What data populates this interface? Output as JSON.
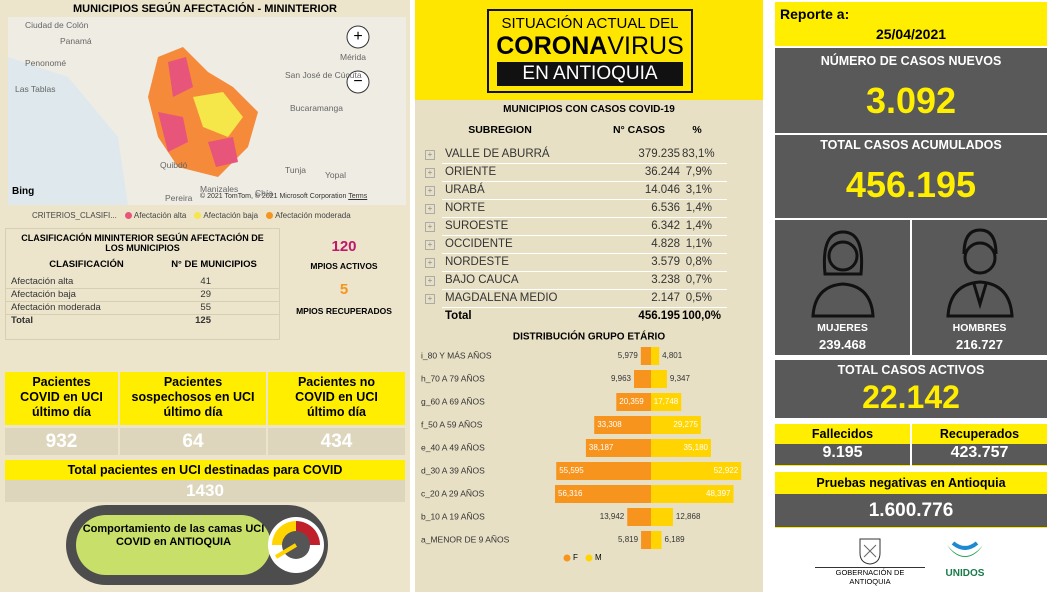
{
  "left": {
    "map_title": "MUNICIPIOS SEGÚN AFECTACIÓN - MININTERIOR",
    "map_labels": [
      "Ciudad de Colón",
      "Panamá",
      "Penonomé",
      "Las Tablas",
      "Mérida",
      "San José de Cúcuta",
      "Bucaramanga",
      "Tunja",
      "Yopal",
      "Quibdó",
      "Manizales",
      "Pereira",
      "Chía"
    ],
    "map_credit": "© 2021 TomTom, © 2021 Microsoft Corporation",
    "map_terms": "Terms",
    "bing": "Bing",
    "legend": {
      "title": "CRITERIOS_CLASIFI...",
      "items": [
        "Afectación alta",
        "Afectación baja",
        "Afectación moderada"
      ]
    },
    "table": {
      "title": "CLASIFICACIÓN MININTERIOR SEGÚN AFECTACIÓN DE LOS MUNICIPIOS",
      "headers": [
        "CLASIFICACIÓN",
        "N° DE MUNICIPIOS"
      ],
      "rows": [
        [
          "Afectación alta",
          "41"
        ],
        [
          "Afectación baja",
          "29"
        ],
        [
          "Afectación moderada",
          "55"
        ],
        [
          "Total",
          "125"
        ]
      ]
    },
    "active": "120",
    "active_label": "MPIOS ACTIVOS",
    "recovered": "5",
    "recovered_label": "MPIOS RECUPERADOS",
    "uci": [
      {
        "label": "Pacientes COVID en UCI último día",
        "value": "932"
      },
      {
        "label": "Pacientes sospechosos en UCI último día",
        "value": "64"
      },
      {
        "label": "Pacientes no COVID en UCI último día",
        "value": "434"
      }
    ],
    "uci_total_label": "Total pacientes en UCI destinadas para COVID",
    "uci_total": "1430",
    "button": "Comportamiento de las camas UCI COVID en ANTIOQUIA"
  },
  "middle": {
    "banner": {
      "line1": "SITUACIÓN ACTUAL DEL",
      "corona": "CORONA",
      "virus": "VIRUS",
      "line3": "EN ANTIOQUIA"
    },
    "table": {
      "title": "MUNICIPIOS CON CASOS COVID-19",
      "headers": [
        "SUBREGION",
        "N° CASOS",
        "%"
      ],
      "rows": [
        [
          "VALLE DE ABURRÁ",
          "379.235",
          "83,1%"
        ],
        [
          "ORIENTE",
          "36.244",
          "7,9%"
        ],
        [
          "URABÁ",
          "14.046",
          "3,1%"
        ],
        [
          "NORTE",
          "6.536",
          "1,4%"
        ],
        [
          "SUROESTE",
          "6.342",
          "1,4%"
        ],
        [
          "OCCIDENTE",
          "4.828",
          "1,1%"
        ],
        [
          "NORDESTE",
          "3.579",
          "0,8%"
        ],
        [
          "BAJO CAUCA",
          "3.238",
          "0,7%"
        ],
        [
          "MAGDALENA MEDIO",
          "2.147",
          "0,5%"
        ]
      ],
      "total": [
        "Total",
        "456.195",
        "100,0%"
      ]
    }
  },
  "chart_data": {
    "type": "pyramid",
    "title": "DISTRIBUCIÓN GRUPO ETÁRIO",
    "categories": [
      "i_80 Y MÁS AÑOS",
      "h_70 A 79 AÑOS",
      "g_60 A 69 AÑOS",
      "f_50 A 59 AÑOS",
      "e_40 A 49 AÑOS",
      "d_30 A 39 AÑOS",
      "c_20 A 29 AÑOS",
      "b_10 A 19 AÑOS",
      "a_MENOR DE 9 AÑOS"
    ],
    "series": [
      {
        "name": "F",
        "color": "#f7941d",
        "values": [
          5979,
          9963,
          20359,
          33308,
          38187,
          55595,
          56316,
          13942,
          5819
        ],
        "value_labels": [
          "5,979",
          "9,963",
          "20,359",
          "33,308",
          "38,187",
          "55,595",
          "56,316",
          "13,942",
          "5,819"
        ]
      },
      {
        "name": "M",
        "color": "#ffd400",
        "values": [
          4801,
          9347,
          17748,
          29275,
          35180,
          52922,
          48397,
          12868,
          6189
        ],
        "value_labels": [
          "4,801",
          "9,347",
          "17,748",
          "29,275",
          "35,180",
          "52,922",
          "48,397",
          "12,868",
          "6,189"
        ]
      }
    ]
  },
  "right": {
    "report_label": "Reporte a:",
    "report_date": "25/04/2021",
    "new_label": "NÚMERO DE CASOS NUEVOS",
    "new": "3.092",
    "cum_label": "TOTAL CASOS ACUMULADOS",
    "cum": "456.195",
    "women_label": "MUJERES",
    "women": "239.468",
    "men_label": "HOMBRES",
    "men": "216.727",
    "active_label": "TOTAL CASOS ACTIVOS",
    "active": "22.142",
    "deaths_label": "Fallecidos",
    "deaths": "9.195",
    "recovered_label": "Recuperados",
    "recovered": "423.757",
    "tests_label": "Pruebas negativas en Antioquia",
    "tests": "1.600.776",
    "gov": "GOBERNACIÓN DE ANTIOQUIA",
    "unidos": "UNIDOS"
  }
}
